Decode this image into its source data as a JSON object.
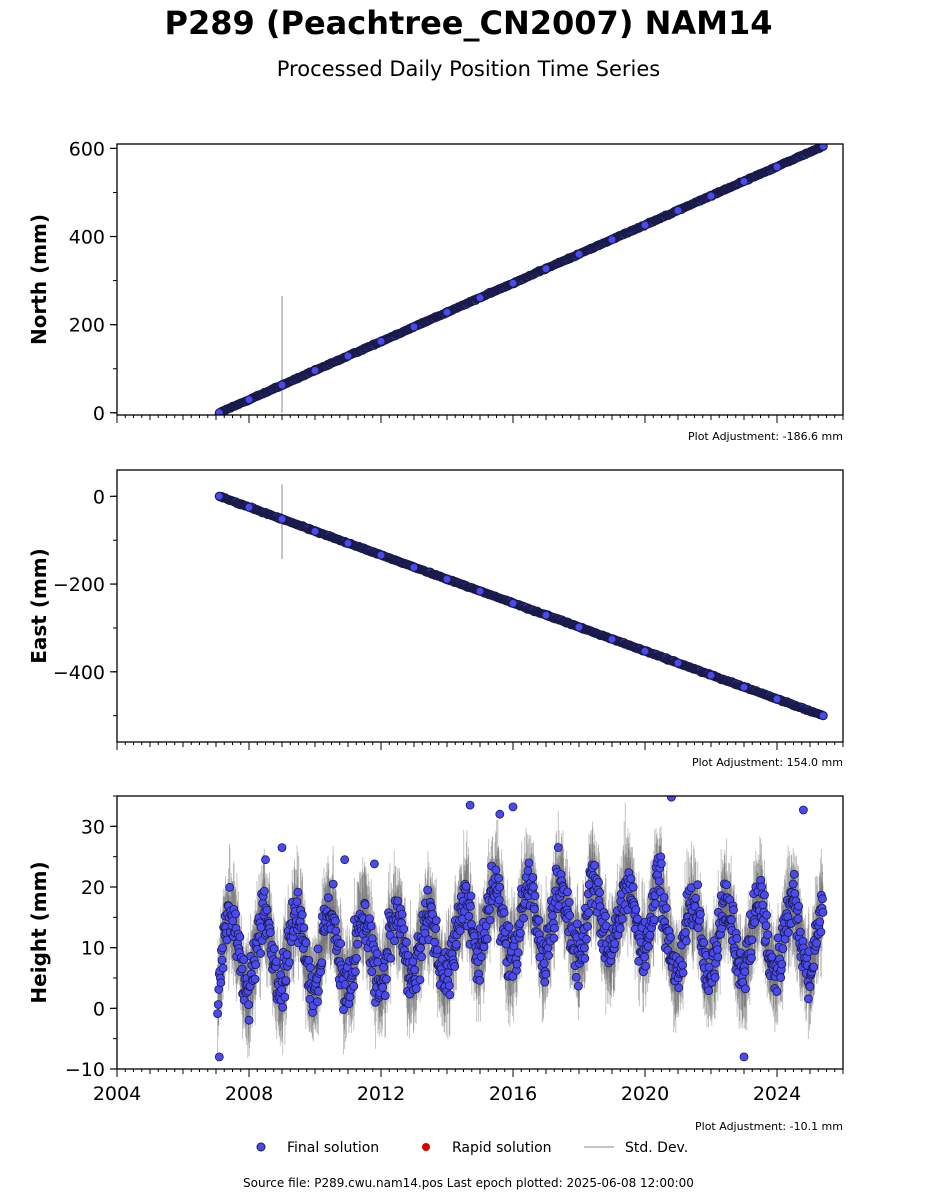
{
  "header": {
    "title": "P289 (Peachtree_CN2007) NAM14",
    "subtitle": "Processed Daily Position Time Series"
  },
  "footer": {
    "source": "Source file: P289.cwu.nam14.pos  Last epoch plotted: 2025-06-08 12:00:00"
  },
  "colors": {
    "final": "#4a4af0",
    "final_edge": "#1a1a4a",
    "rapid": "#dd0000",
    "stddev": "#b0b0b0"
  },
  "chart_data": [
    {
      "type": "scatter",
      "ylabel": "North (mm)",
      "xlim": [
        2004.0,
        2026.0
      ],
      "ylim": [
        -5,
        610
      ],
      "yticks": [
        0,
        200,
        400,
        600
      ],
      "ytick_labels": [
        "0",
        "200",
        "400",
        "600"
      ],
      "adjustment": "Plot Adjustment: -186.6 mm",
      "trend": {
        "x": [
          2007.1,
          2025.4
        ],
        "y": [
          0,
          605
        ]
      },
      "series": [
        {
          "name": "Final solution",
          "x": [
            2007.1,
            2008.0,
            2009.0,
            2010.0,
            2011.0,
            2012.0,
            2013.0,
            2014.0,
            2015.0,
            2016.0,
            2017.0,
            2018.0,
            2019.0,
            2020.0,
            2021.0,
            2022.0,
            2023.0,
            2024.0,
            2025.4
          ],
          "y": [
            0,
            30,
            63,
            96,
            129,
            162,
            195,
            228,
            261,
            294,
            327,
            360,
            393,
            426,
            459,
            492,
            525,
            558,
            605
          ]
        }
      ],
      "outlier_errorbar": {
        "x": 2009.0,
        "y_low": 0,
        "y_high": 265
      }
    },
    {
      "type": "scatter",
      "ylabel": "East (mm)",
      "xlim": [
        2004.0,
        2026.0
      ],
      "ylim": [
        -560,
        60
      ],
      "yticks": [
        0,
        -200,
        -400
      ],
      "ytick_labels": [
        "0",
        "−200",
        "−400"
      ],
      "adjustment": "Plot Adjustment: 154.0 mm",
      "trend": {
        "x": [
          2007.1,
          2025.4
        ],
        "y": [
          0,
          -500
        ]
      },
      "series": [
        {
          "name": "Final solution",
          "x": [
            2007.1,
            2008.0,
            2009.0,
            2010.0,
            2011.0,
            2012.0,
            2013.0,
            2014.0,
            2015.0,
            2016.0,
            2017.0,
            2018.0,
            2019.0,
            2020.0,
            2021.0,
            2022.0,
            2023.0,
            2024.0,
            2025.4
          ],
          "y": [
            0,
            -25,
            -52,
            -80,
            -107,
            -134,
            -162,
            -189,
            -216,
            -244,
            -271,
            -298,
            -326,
            -353,
            -380,
            -408,
            -435,
            -462,
            -500
          ]
        }
      ],
      "outlier_errorbar": {
        "x": 2009.0,
        "y_low": -143,
        "y_high": 27
      }
    },
    {
      "type": "scatter",
      "ylabel": "Height (mm)",
      "xlim": [
        2004.0,
        2026.0
      ],
      "ylim": [
        -10,
        35
      ],
      "yticks": [
        -10,
        0,
        10,
        20,
        30
      ],
      "ytick_labels": [
        "−10",
        "0",
        "10",
        "20",
        "30"
      ],
      "xticks": [
        2004,
        2008,
        2012,
        2016,
        2020,
        2024
      ],
      "xtick_labels": [
        "2004",
        "2008",
        "2012",
        "2016",
        "2020",
        "2024"
      ],
      "adjustment": "Plot Adjustment: -10.1 mm",
      "data_span": [
        2007.05,
        2025.4
      ],
      "seasonal": {
        "mean": 10.5,
        "trend_per_year": 0.3,
        "amplitude": 6.0,
        "noise": 4.0
      },
      "series": [
        {
          "name": "Final solution",
          "x": [
            2007.1,
            2008.5,
            2009.0,
            2010.9,
            2011.8,
            2014.7,
            2015.6,
            2016.0,
            2020.8,
            2024.8,
            2023.0
          ],
          "y": [
            -8.0,
            24.5,
            26.5,
            24.5,
            23.8,
            33.5,
            32.0,
            33.2,
            34.8,
            32.7,
            -8.0
          ]
        }
      ]
    }
  ],
  "legend": {
    "final": "Final solution",
    "rapid": "Rapid solution",
    "stddev": "Std. Dev."
  }
}
